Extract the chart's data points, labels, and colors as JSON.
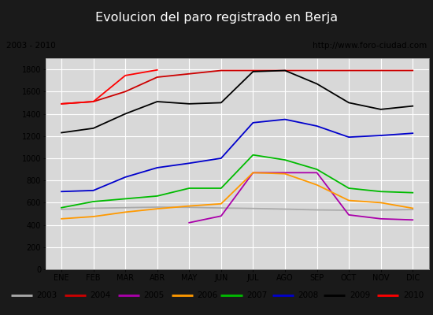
{
  "title": "Evolucion del paro registrado en Berja",
  "subtitle_left": "2003 - 2010",
  "subtitle_right": "http://www.foro-ciudad.com",
  "months": [
    "ENE",
    "FEB",
    "MAR",
    "ABR",
    "MAY",
    "JUN",
    "JUL",
    "AGO",
    "SEP",
    "OCT",
    "NOV",
    "DIC"
  ],
  "series": {
    "2003": [
      540,
      550,
      555,
      560,
      558,
      552,
      548,
      542,
      535,
      532,
      534,
      538
    ],
    "2004": [
      1490,
      1510,
      1600,
      1730,
      1760,
      1790,
      1790,
      1790,
      1790,
      1790,
      1790,
      1790
    ],
    "2005": [
      null,
      null,
      null,
      null,
      420,
      480,
      870,
      870,
      870,
      490,
      455,
      445
    ],
    "2006": [
      455,
      475,
      515,
      545,
      570,
      590,
      870,
      860,
      760,
      620,
      600,
      550
    ],
    "2007": [
      555,
      610,
      635,
      660,
      730,
      730,
      1030,
      985,
      900,
      730,
      700,
      690
    ],
    "2008": [
      700,
      710,
      830,
      915,
      955,
      1000,
      1320,
      1350,
      1290,
      1190,
      1205,
      1225
    ],
    "2009": [
      1230,
      1270,
      1400,
      1510,
      1490,
      1500,
      1780,
      1790,
      1670,
      1500,
      1440,
      1470
    ],
    "2010": [
      1490,
      1510,
      1745,
      1795,
      null,
      null,
      null,
      null,
      null,
      null,
      null,
      null
    ]
  },
  "colors": {
    "2003": "#aaaaaa",
    "2004": "#cc0000",
    "2005": "#aa00aa",
    "2006": "#ff9900",
    "2007": "#00bb00",
    "2008": "#0000cc",
    "2009": "#000000",
    "2010": "#ff0000"
  },
  "ylim": [
    0,
    1900
  ],
  "yticks": [
    0,
    200,
    400,
    600,
    800,
    1000,
    1200,
    1400,
    1600,
    1800
  ],
  "title_color": "#ffffff",
  "title_bg": "#1a1a1a",
  "subtitle_bg": "#d8d8d8",
  "plot_bg": "#d8d8d8",
  "legend_bg": "#eeeeee",
  "grid_color": "#ffffff",
  "border_color": "#aaaaaa"
}
